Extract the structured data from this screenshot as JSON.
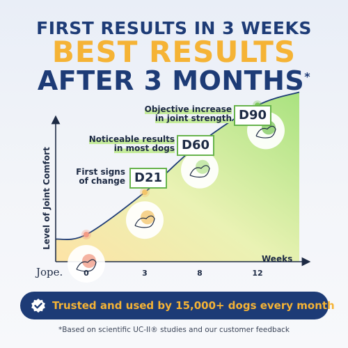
{
  "headline": {
    "line1": "FIRST RESULTS IN 3 WEEKS",
    "line2": "BEST RESULTS",
    "line3": "AFTER 3 MONTHS",
    "line3_mark": "*"
  },
  "chart_data": {
    "type": "area",
    "ylabel": "Level of Joint Comfort",
    "xlabel": "Weeks",
    "x_ticks": [
      "0",
      "3",
      "8",
      "12"
    ],
    "series": [
      {
        "values": [
          {
            "x": 0,
            "y": 1.0
          },
          {
            "x": 3,
            "y": 2.9
          },
          {
            "x": 8,
            "y": 5.1
          },
          {
            "x": 12,
            "y": 6.8
          }
        ]
      }
    ],
    "annotations": [
      {
        "x": 3,
        "day": "D21",
        "lines": [
          "First signs",
          "of change"
        ]
      },
      {
        "x": 8,
        "day": "D60",
        "lines": [
          "Noticeable results",
          "in most dogs"
        ]
      },
      {
        "x": 12,
        "day": "D90",
        "lines": [
          "Objective increase",
          "in joint strength"
        ]
      }
    ],
    "colors": {
      "line": "#1d3b76",
      "fill_top": "#a9e27f",
      "fill_bottom": "#fde3a6",
      "marker_0": "#f29a84",
      "marker_3": "#f3c46a",
      "marker_8": "#b5e293",
      "marker_12": "#7cc75a"
    }
  },
  "brand": {
    "logo": "Jope."
  },
  "banner": {
    "text": "Trusted and used by 15,000+ dogs every month",
    "icon": "verified-check-badge-icon"
  },
  "footnote": "*Based on scientific UC-II® studies and our customer feedback"
}
